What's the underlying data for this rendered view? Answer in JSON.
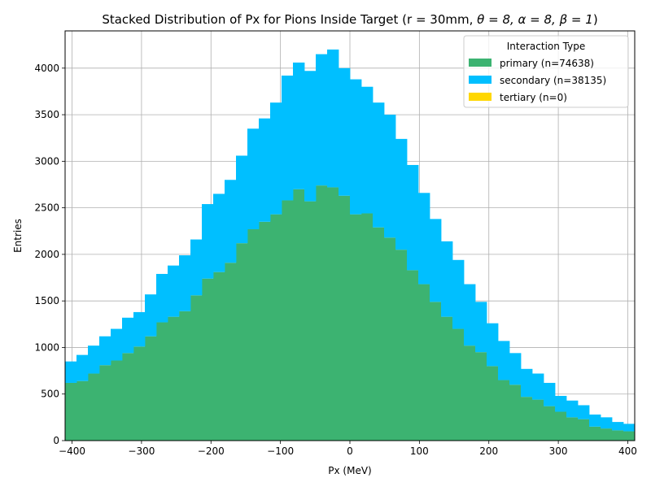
{
  "chart_data": {
    "type": "bar",
    "stacked": true,
    "title_prefix": "Stacked Distribution of Px for Pions Inside Target (r = 30mm, ",
    "title_math": "θ = 8, α = 8, β = 1",
    "title_suffix": ")",
    "xlabel": "Px (MeV)",
    "ylabel": "Entries",
    "xlim": [
      -410,
      410
    ],
    "ylim": [
      0,
      4400
    ],
    "xticks": [
      -400,
      -300,
      -200,
      -100,
      0,
      100,
      200,
      300,
      400
    ],
    "xtick_labels": [
      "−400",
      "−300",
      "−200",
      "−100",
      "0",
      "100",
      "200",
      "300",
      "400"
    ],
    "yticks": [
      0,
      500,
      1000,
      1500,
      2000,
      2500,
      3000,
      3500,
      4000
    ],
    "grid": true,
    "legend": {
      "title": "Interaction Type",
      "placement": "top-right"
    },
    "bin_start": -410,
    "bin_width": 16.4,
    "series": [
      {
        "name": "primary (n=74638)",
        "color": "#3cb371",
        "values": [
          620,
          640,
          720,
          810,
          860,
          940,
          1010,
          1120,
          1270,
          1330,
          1390,
          1560,
          1740,
          1810,
          1910,
          2120,
          2270,
          2350,
          2430,
          2580,
          2700,
          2570,
          2740,
          2720,
          2630,
          2430,
          2440,
          2290,
          2180,
          2050,
          1830,
          1680,
          1490,
          1330,
          1200,
          1020,
          950,
          800,
          650,
          600,
          470,
          440,
          370,
          310,
          250,
          230,
          150,
          130,
          110,
          100
        ]
      },
      {
        "name": "secondary (n=38135)",
        "color": "#00bfff",
        "values": [
          230,
          280,
          300,
          310,
          340,
          380,
          370,
          450,
          520,
          550,
          600,
          600,
          800,
          840,
          890,
          940,
          1080,
          1110,
          1200,
          1340,
          1360,
          1400,
          1410,
          1480,
          1370,
          1450,
          1360,
          1340,
          1320,
          1190,
          1130,
          980,
          890,
          810,
          740,
          660,
          540,
          460,
          420,
          340,
          300,
          280,
          250,
          170,
          180,
          150,
          130,
          120,
          90,
          80
        ]
      },
      {
        "name": "tertiary (n=0)",
        "color": "#ffd700",
        "values": [
          0,
          0,
          0,
          0,
          0,
          0,
          0,
          0,
          0,
          0,
          0,
          0,
          0,
          0,
          0,
          0,
          0,
          0,
          0,
          0,
          0,
          0,
          0,
          0,
          0,
          0,
          0,
          0,
          0,
          0,
          0,
          0,
          0,
          0,
          0,
          0,
          0,
          0,
          0,
          0,
          0,
          0,
          0,
          0,
          0,
          0,
          0,
          0,
          0,
          0
        ]
      }
    ]
  }
}
